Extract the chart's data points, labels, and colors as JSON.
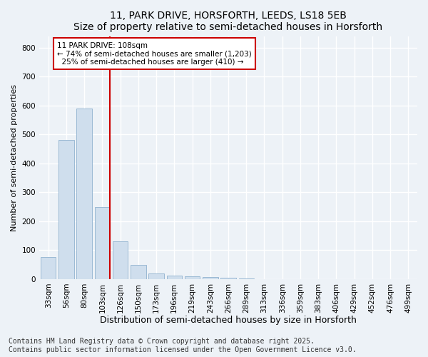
{
  "title1": "11, PARK DRIVE, HORSFORTH, LEEDS, LS18 5EB",
  "title2": "Size of property relative to semi-detached houses in Horsforth",
  "xlabel": "Distribution of semi-detached houses by size in Horsforth",
  "ylabel": "Number of semi-detached properties",
  "categories": [
    "33sqm",
    "56sqm",
    "80sqm",
    "103sqm",
    "126sqm",
    "150sqm",
    "173sqm",
    "196sqm",
    "219sqm",
    "243sqm",
    "266sqm",
    "289sqm",
    "313sqm",
    "336sqm",
    "359sqm",
    "383sqm",
    "406sqm",
    "429sqm",
    "452sqm",
    "476sqm",
    "499sqm"
  ],
  "values": [
    75,
    480,
    590,
    250,
    130,
    50,
    20,
    13,
    10,
    6,
    4,
    3,
    0,
    0,
    0,
    0,
    0,
    0,
    0,
    0,
    0
  ],
  "bar_color": "#cfdeed",
  "bar_edge_color": "#9ab9d4",
  "property_line_color": "#cc0000",
  "annotation_text": "11 PARK DRIVE: 108sqm\n← 74% of semi-detached houses are smaller (1,203)\n  25% of semi-detached houses are larger (410) →",
  "annotation_box_color": "#ffffff",
  "annotation_box_edge": "#cc0000",
  "ylim": [
    0,
    840
  ],
  "yticks": [
    0,
    100,
    200,
    300,
    400,
    500,
    600,
    700,
    800
  ],
  "footer_text": "Contains HM Land Registry data © Crown copyright and database right 2025.\nContains public sector information licensed under the Open Government Licence v3.0.",
  "bg_color": "#edf2f7",
  "grid_color": "#ffffff",
  "title_fontsize": 10,
  "xlabel_fontsize": 9,
  "ylabel_fontsize": 8,
  "tick_fontsize": 7.5,
  "footer_fontsize": 7
}
